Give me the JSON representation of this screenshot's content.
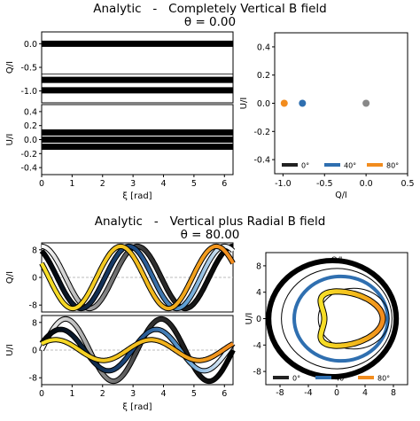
{
  "chart_data": [
    {
      "type": "line",
      "title": "Analytic   -   Completely Vertical B field",
      "subtitle": "θ = 0.00",
      "panels": [
        {
          "ylabel": "Q/I",
          "ylim": [
            -1.25,
            0.25
          ],
          "yticks": [
            "0.0",
            "-0.5",
            "-1.0"
          ],
          "series": [
            {
              "name": "0°",
              "constant": 0.0
            },
            {
              "name": "40°",
              "constant": -0.766
            },
            {
              "name": "80°",
              "constant": -0.985
            }
          ]
        },
        {
          "ylabel": "U/I",
          "ylim": [
            -0.5,
            0.5
          ],
          "yticks": [
            "0.4",
            "0.2",
            "0.0",
            "-0.2",
            "-0.4"
          ],
          "series": [
            {
              "name": "0°",
              "constant": 0.0
            },
            {
              "name": "40°",
              "constant": 0.0
            },
            {
              "name": "80°",
              "constant": 0.0
            }
          ]
        }
      ],
      "xlabel": "ξ [rad]",
      "xlim": [
        0,
        6.283
      ],
      "xticks": [
        "0",
        "1",
        "2",
        "3",
        "4",
        "5",
        "6"
      ]
    },
    {
      "type": "scatter",
      "xlabel": "Q/I",
      "ylabel": "U/I",
      "xlim": [
        -1.1,
        0.5
      ],
      "ylim": [
        -0.5,
        0.5
      ],
      "xticks": [
        "-1.0",
        "-0.5",
        "0.0",
        "0.5"
      ],
      "yticks": [
        "0.4",
        "0.2",
        "0.0",
        "-0.2",
        "-0.4"
      ],
      "points": [
        {
          "series": "0°",
          "x": 0.0,
          "y": 0.0
        },
        {
          "series": "40°",
          "x": -0.766,
          "y": 0.0
        },
        {
          "series": "80°",
          "x": -0.985,
          "y": 0.0
        }
      ],
      "legend": [
        "0°",
        "40°",
        "80°"
      ],
      "legend_position": "bottom"
    },
    {
      "type": "line",
      "title": "Analytic   -   Vertical plus Radial B field",
      "subtitle": "θ = 80.00",
      "panels": [
        {
          "ylabel": "Q/I",
          "ylim": [
            -10,
            10
          ],
          "yticks": [
            "8",
            "0",
            "-8"
          ],
          "series": [
            {
              "name": "0°",
              "amplitude": 9.0,
              "offset": 0.0
            },
            {
              "name": "40°",
              "amplitude": 9.0,
              "offset": 0.0
            },
            {
              "name": "80°",
              "amplitude": 9.0,
              "offset": 0.0
            }
          ]
        },
        {
          "ylabel": "U/I",
          "ylim": [
            -10,
            10
          ],
          "yticks": [
            "8",
            "0",
            "-8"
          ],
          "series": [
            {
              "name": "0°",
              "amplitude": 9.0
            },
            {
              "name": "40°",
              "amplitude": 6.0
            },
            {
              "name": "80°",
              "amplitude": 3.0
            }
          ]
        }
      ],
      "xlabel": "ξ [rad]",
      "xlim": [
        0,
        6.283
      ],
      "xticks": [
        "0",
        "1",
        "2",
        "3",
        "4",
        "5",
        "6"
      ]
    },
    {
      "type": "line",
      "xlabel": "Q/I",
      "ylabel": "U/I",
      "xlim": [
        -10,
        10
      ],
      "ylim": [
        -10,
        10
      ],
      "xticks": [
        "-8",
        "-4",
        "0",
        "4",
        "8"
      ],
      "yticks": [
        "8",
        "4",
        "0",
        "-4",
        "-8"
      ],
      "legend": [
        "0°",
        "40°",
        "80°"
      ],
      "legend_position": "bottom"
    }
  ],
  "colors": {
    "s0": "#222222",
    "s40": "#2f6fb0",
    "s80": "#f28c1e",
    "s80_light": "#f7e028",
    "baseline": "#bbbbbb"
  }
}
